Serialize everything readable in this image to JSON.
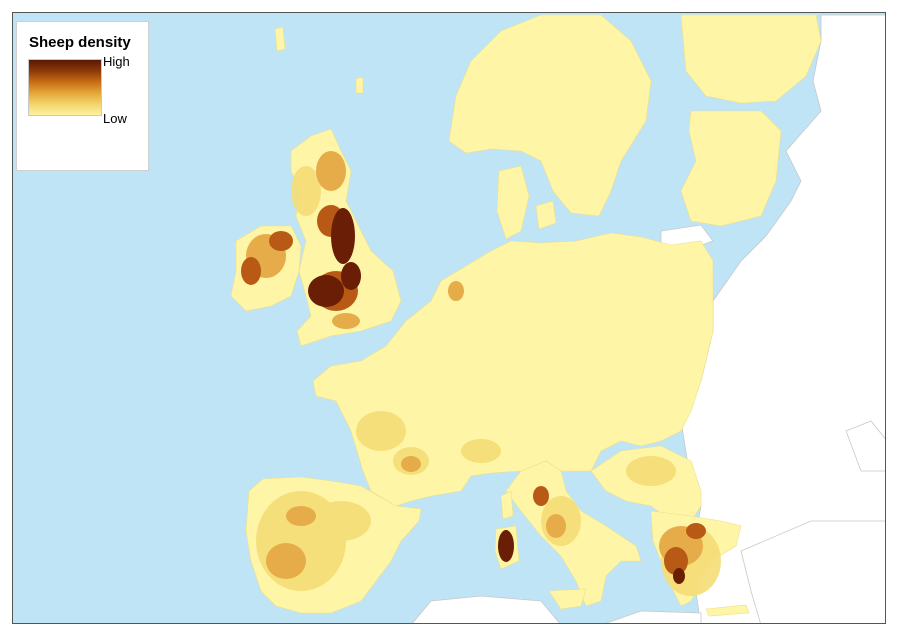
{
  "legend": {
    "title": "Sheep density",
    "high_label": "High",
    "low_label": "Low",
    "ramp_colors": [
      "#5a1806",
      "#8c3a08",
      "#c86c14",
      "#e4a63a",
      "#f2d46a",
      "#fdf1a1"
    ]
  },
  "colors": {
    "sea": "#bfe4f6",
    "non_data_land": "#ffffff",
    "borders": "#c8c8c8",
    "density_very_low": "#fef5a6",
    "density_low": "#f5dd77",
    "density_medium": "#e6ac4a",
    "density_high": "#b85a16",
    "density_very_high": "#6a1e06"
  }
}
